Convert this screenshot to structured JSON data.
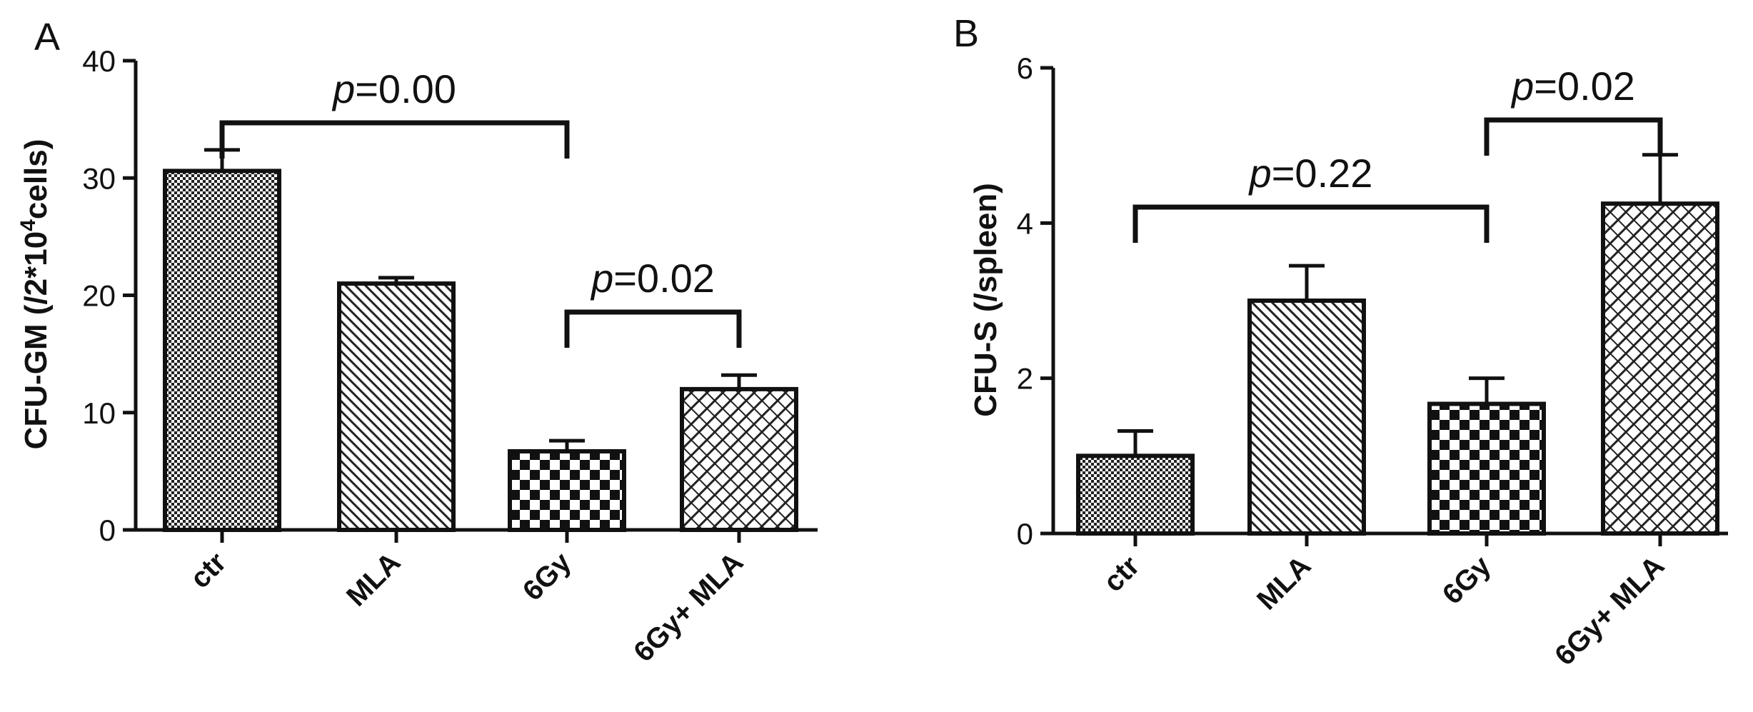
{
  "chart_data": [
    {
      "type": "bar",
      "panel": "A",
      "ylabel": "CFU-GM (/2*10",
      "ylabel_sup": "4",
      "ylabel_end": "cells)",
      "categories": [
        "ctr",
        "MLA",
        "6Gy",
        "6Gy+ MLA"
      ],
      "values": [
        30.6,
        21.0,
        6.7,
        12.0
      ],
      "errors": [
        1.8,
        0.5,
        0.9,
        1.2
      ],
      "ylim": [
        0,
        40
      ],
      "yticks": [
        "0",
        "10",
        "20",
        "30",
        "40"
      ],
      "patterns": [
        "fine-check",
        "diagonal",
        "checker",
        "brick"
      ],
      "comparisons": [
        {
          "from": 0,
          "to": 2,
          "p": "=0.00"
        },
        {
          "from": 2,
          "to": 3,
          "p": "=0.02"
        }
      ]
    },
    {
      "type": "bar",
      "panel": "B",
      "ylabel": "CFU-S (/spleen)",
      "categories": [
        "ctr",
        "MLA",
        "6Gy",
        "6Gy+ MLA"
      ],
      "values": [
        1.0,
        3.0,
        1.67,
        4.25
      ],
      "errors": [
        0.32,
        0.45,
        0.33,
        0.63
      ],
      "ylim": [
        0,
        6
      ],
      "yticks": [
        "0",
        "2",
        "4",
        "6"
      ],
      "patterns": [
        "fine-check",
        "diagonal",
        "checker",
        "brick"
      ],
      "comparisons": [
        {
          "from": 0,
          "to": 2,
          "p": "=0.22"
        },
        {
          "from": 2,
          "to": 3,
          "p": "=0.02"
        }
      ]
    }
  ]
}
